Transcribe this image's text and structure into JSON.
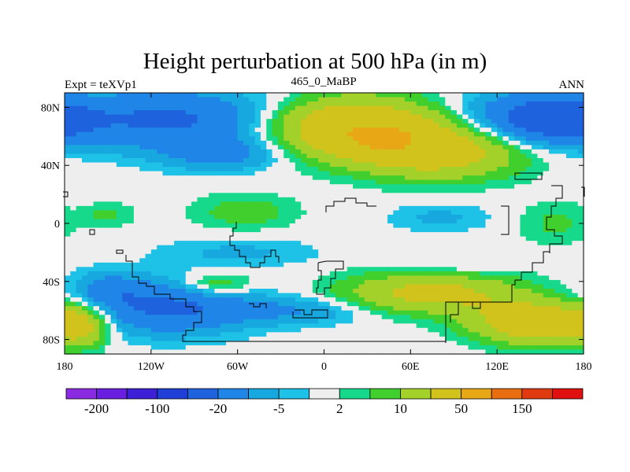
{
  "chart_data": {
    "type": "heatmap",
    "title": "Height perturbation at 500 hPa (in m)",
    "left_label": "Expt = teXVp1",
    "center_label": "465_0_MaBP",
    "right_label": "ANN",
    "x_range": [
      -180,
      180
    ],
    "y_range": [
      -90,
      90
    ],
    "x_ticks": [
      {
        "value": -180,
        "label": "180"
      },
      {
        "value": -120,
        "label": "120W"
      },
      {
        "value": -60,
        "label": "60W"
      },
      {
        "value": 0,
        "label": "0"
      },
      {
        "value": 60,
        "label": "60E"
      },
      {
        "value": 120,
        "label": "120E"
      },
      {
        "value": 180,
        "label": "180"
      }
    ],
    "y_ticks": [
      {
        "value": 80,
        "label": "80N"
      },
      {
        "value": 40,
        "label": "40N"
      },
      {
        "value": 0,
        "label": "0"
      },
      {
        "value": -40,
        "label": "40S"
      },
      {
        "value": -80,
        "label": "80S"
      }
    ],
    "colorbar": {
      "colors": [
        "#8a2be2",
        "#6a1fe0",
        "#3c1fd6",
        "#1f3fd6",
        "#1e62de",
        "#1f86e8",
        "#18a8e0",
        "#1ec2e6",
        "#eeeeee",
        "#17d98c",
        "#40cf2c",
        "#a3d12a",
        "#d2c21c",
        "#e8a715",
        "#e86e10",
        "#e03a10",
        "#e01010"
      ],
      "labels": [
        {
          "boundary": 1,
          "text": "-200"
        },
        {
          "boundary": 3,
          "text": "-100"
        },
        {
          "boundary": 5,
          "text": "-20"
        },
        {
          "boundary": 7,
          "text": "-5"
        },
        {
          "boundary": 9,
          "text": "2"
        },
        {
          "boundary": 11,
          "text": "10"
        },
        {
          "boundary": 13,
          "text": "50"
        },
        {
          "boundary": 15,
          "text": "150"
        }
      ]
    },
    "field_blobs": [
      {
        "lon": -110,
        "lat": 72,
        "rlon": 80,
        "rlat": 20,
        "v": -22
      },
      {
        "lon": -70,
        "lat": 48,
        "rlon": 45,
        "rlat": 12,
        "v": -12
      },
      {
        "lon": 20,
        "lat": 66,
        "rlon": 55,
        "rlat": 20,
        "v": 40
      },
      {
        "lon": 80,
        "lat": 50,
        "rlon": 55,
        "rlat": 18,
        "v": 30
      },
      {
        "lon": 40,
        "lat": 58,
        "rlon": 25,
        "rlat": 10,
        "v": 20
      },
      {
        "lon": 140,
        "lat": 72,
        "rlon": 45,
        "rlat": 18,
        "v": -22
      },
      {
        "lon": 170,
        "lat": 70,
        "rlon": 30,
        "rlat": 14,
        "v": -12
      },
      {
        "lon": -55,
        "lat": 8,
        "rlon": 35,
        "rlat": 12,
        "v": 8
      },
      {
        "lon": -150,
        "lat": 6,
        "rlon": 18,
        "rlat": 8,
        "v": 6
      },
      {
        "lon": 80,
        "lat": 4,
        "rlon": 35,
        "rlat": 10,
        "v": -6
      },
      {
        "lon": 160,
        "lat": 0,
        "rlon": 25,
        "rlat": 15,
        "v": 6
      },
      {
        "lon": -60,
        "lat": -20,
        "rlon": 55,
        "rlat": 10,
        "v": -6
      },
      {
        "lon": 85,
        "lat": -30,
        "rlon": 40,
        "rlat": 10,
        "v": -4
      },
      {
        "lon": -110,
        "lat": -58,
        "rlon": 55,
        "rlat": 18,
        "v": -22
      },
      {
        "lon": -150,
        "lat": -45,
        "rlon": 25,
        "rlat": 12,
        "v": -10
      },
      {
        "lon": -20,
        "lat": -60,
        "rlon": 55,
        "rlat": 10,
        "v": -10
      },
      {
        "lon": 75,
        "lat": -48,
        "rlon": 60,
        "rlat": 14,
        "v": 25
      },
      {
        "lon": -75,
        "lat": -42,
        "rlon": 25,
        "rlat": 8,
        "v": 12
      },
      {
        "lon": 145,
        "lat": -68,
        "rlon": 40,
        "rlat": 14,
        "v": 35
      },
      {
        "lon": -170,
        "lat": -70,
        "rlon": 20,
        "rlat": 14,
        "v": 25
      }
    ]
  }
}
